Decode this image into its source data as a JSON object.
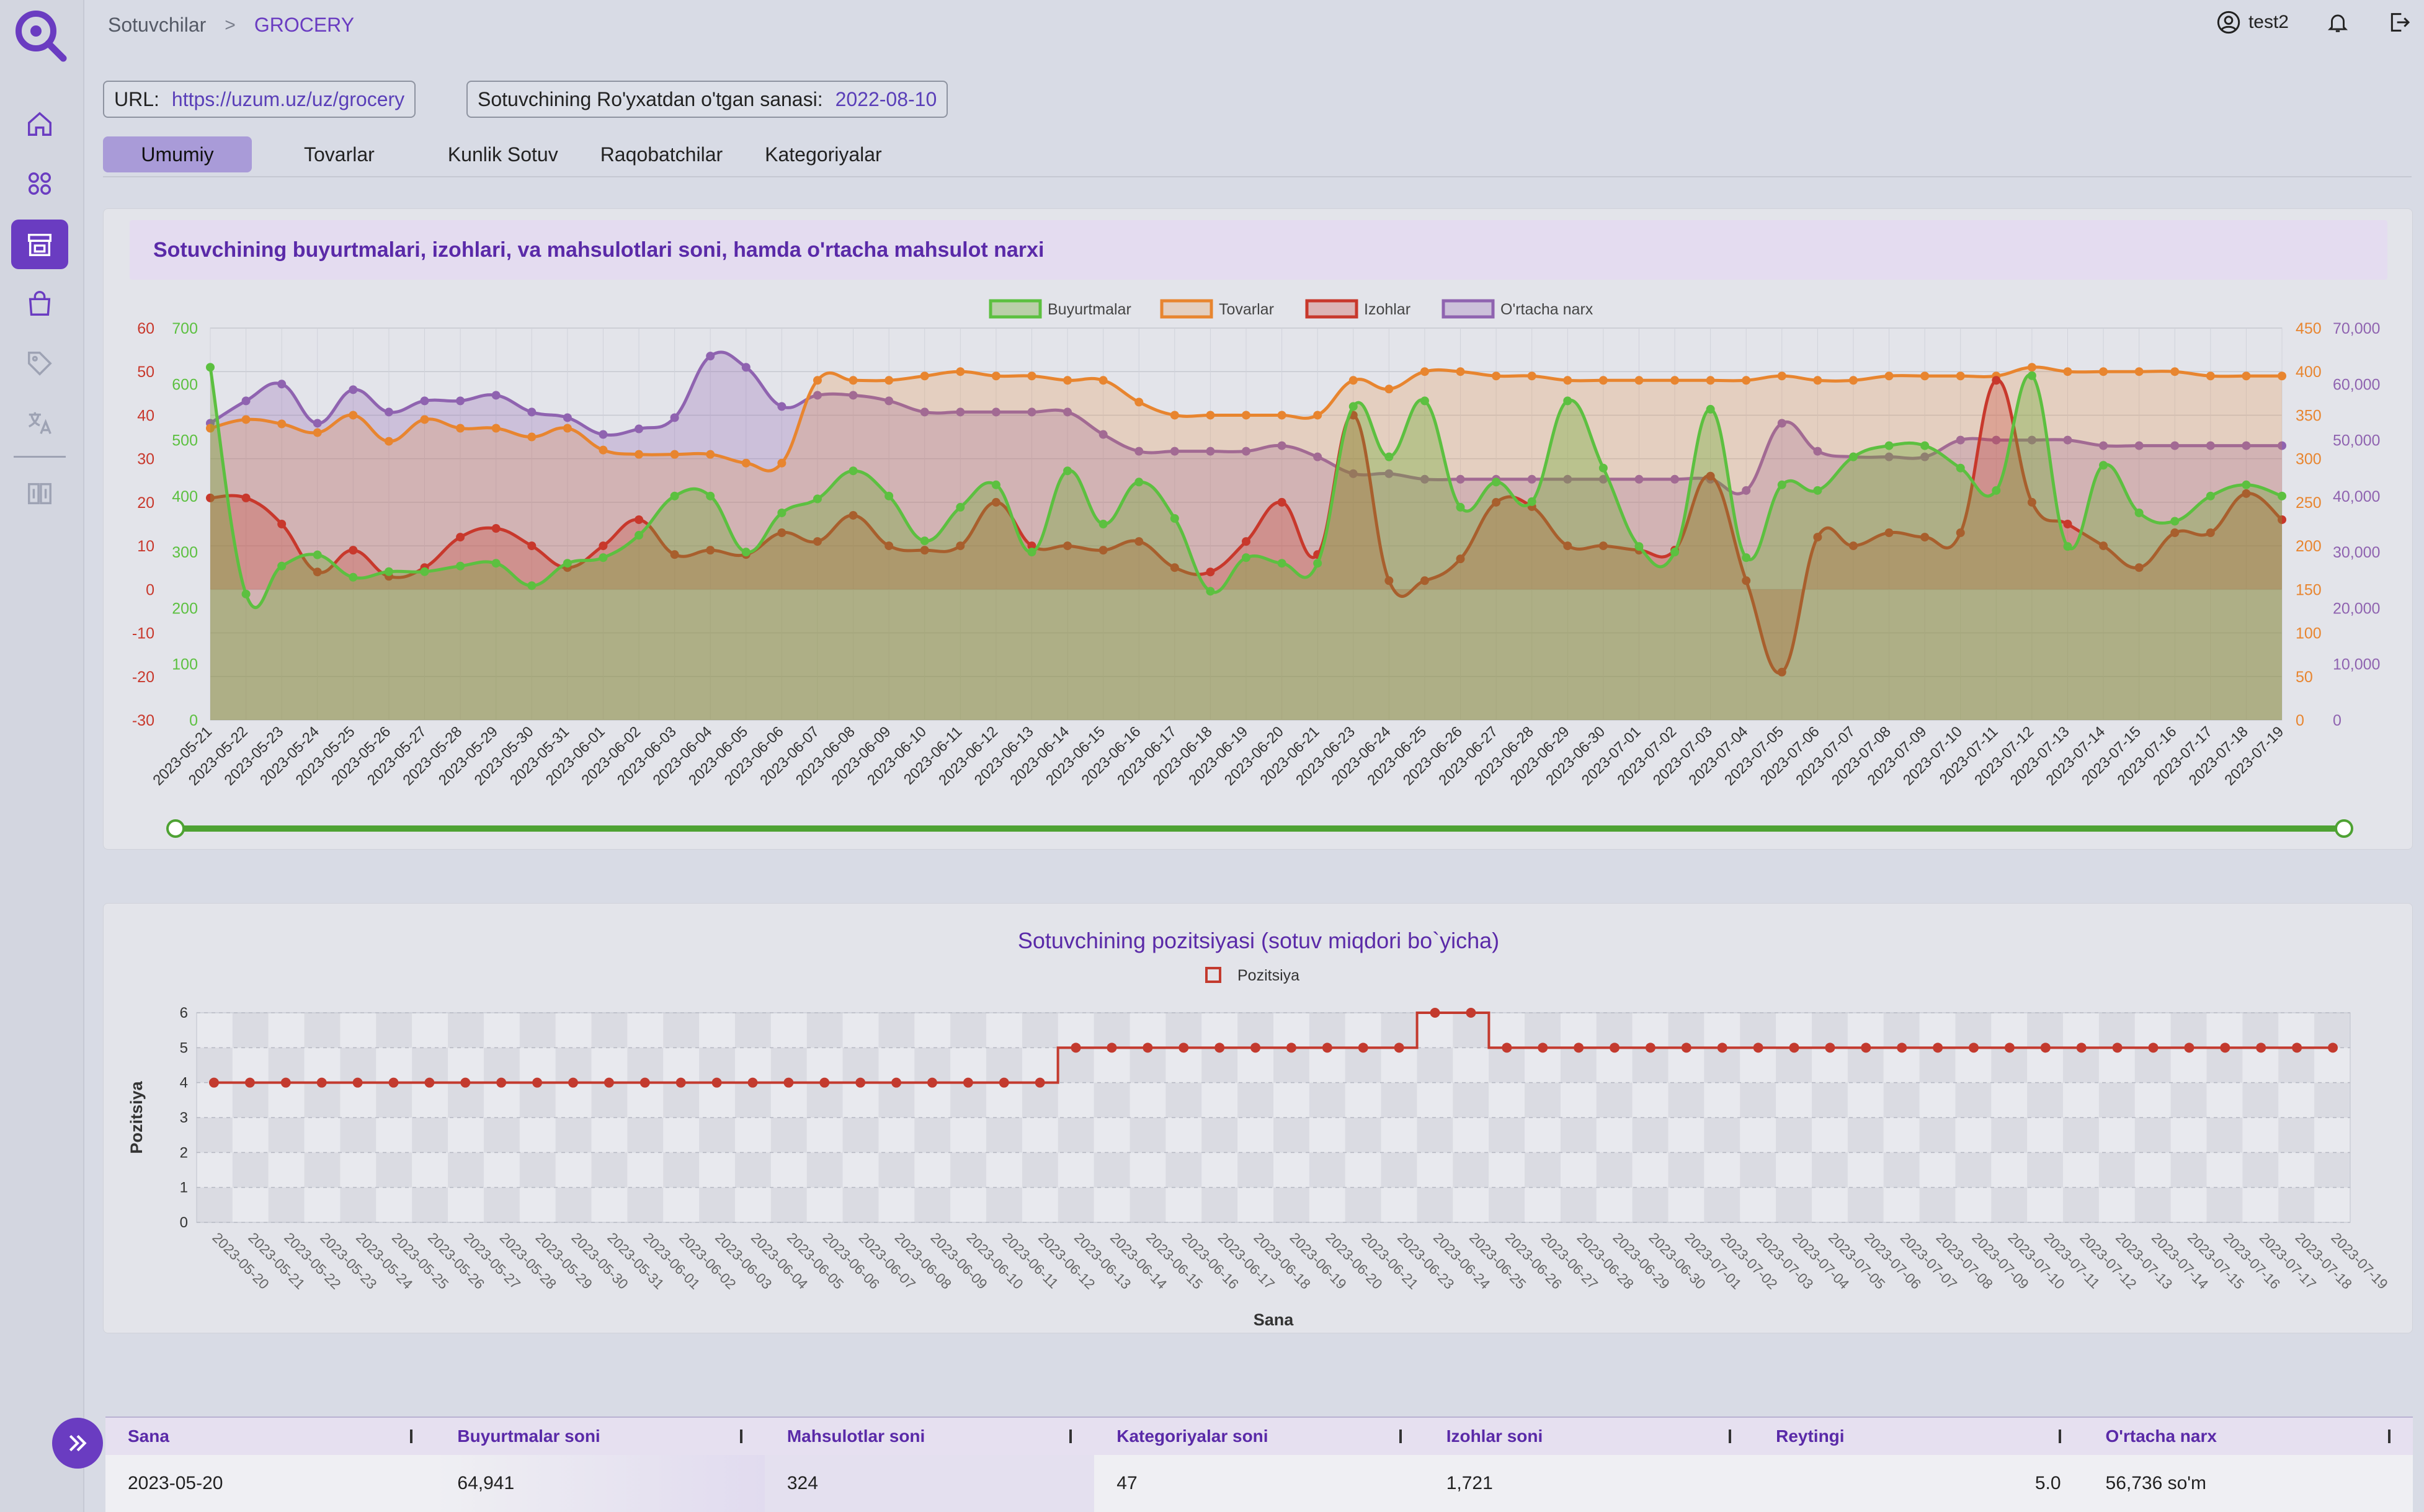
{
  "header": {
    "breadcrumb_root": "Sotuvchilar",
    "breadcrumb_current": "GROCERY",
    "username": "test2"
  },
  "info": {
    "url_label": "URL:",
    "url_value": "https://uzum.uz/uz/grocery",
    "reg_label": "Sotuvchining Ro'yxatdan o'tgan sanasi:",
    "reg_value": "2022-08-10"
  },
  "tabs": [
    "Umumiy",
    "Tovarlar",
    "Kunlik Sotuv",
    "Raqobatchilar",
    "Kategoriyalar"
  ],
  "sidebar_icons": [
    "home-icon",
    "grid-icon",
    "store-icon",
    "bag-icon",
    "tag-icon",
    "translate-icon",
    "compare-icon"
  ],
  "colors": {
    "accent": "#6a3cc1",
    "buyurtmalar": "#5cc040",
    "tovarlar": "#e8852f",
    "izohlar": "#c8382c",
    "ortacha": "#8f63b0",
    "pozitsiya": "#c33a2e"
  },
  "chart_data": [
    {
      "type": "line",
      "title": "Sotuvchining buyurtmalari, izohlari, va mahsulotlari soni, hamda o'rtacha mahsulot narxi",
      "legend_position": "top",
      "grid": true,
      "x": [
        "2023-05-21",
        "2023-05-22",
        "2023-05-23",
        "2023-05-24",
        "2023-05-25",
        "2023-05-26",
        "2023-05-27",
        "2023-05-28",
        "2023-05-29",
        "2023-05-30",
        "2023-05-31",
        "2023-06-01",
        "2023-06-02",
        "2023-06-03",
        "2023-06-04",
        "2023-06-05",
        "2023-06-06",
        "2023-06-07",
        "2023-06-08",
        "2023-06-09",
        "2023-06-10",
        "2023-06-11",
        "2023-06-12",
        "2023-06-13",
        "2023-06-14",
        "2023-06-15",
        "2023-06-16",
        "2023-06-17",
        "2023-06-18",
        "2023-06-19",
        "2023-06-20",
        "2023-06-21",
        "2023-06-23",
        "2023-06-24",
        "2023-06-25",
        "2023-06-26",
        "2023-06-27",
        "2023-06-28",
        "2023-06-29",
        "2023-06-30",
        "2023-07-01",
        "2023-07-02",
        "2023-07-03",
        "2023-07-04",
        "2023-07-05",
        "2023-07-06",
        "2023-07-07",
        "2023-07-08",
        "2023-07-09",
        "2023-07-10",
        "2023-07-11",
        "2023-07-12",
        "2023-07-13",
        "2023-07-14",
        "2023-07-15",
        "2023-07-16",
        "2023-07-17",
        "2023-07-18",
        "2023-07-19"
      ],
      "axes": {
        "izohlar": {
          "ticks": [
            60,
            50,
            40,
            30,
            20,
            10,
            0,
            -10,
            -20,
            -30
          ],
          "range": [
            -30,
            60
          ]
        },
        "buyurtmalar": {
          "ticks": [
            700,
            600,
            500,
            400,
            300,
            200,
            100,
            0
          ],
          "range": [
            0,
            700
          ]
        },
        "tovarlar": {
          "ticks": [
            450,
            400,
            350,
            300,
            250,
            200,
            150,
            100,
            50,
            0
          ],
          "range": [
            0,
            450
          ]
        },
        "ortacha": {
          "ticks": [
            "70,000",
            "60,000",
            "50,000",
            "40,000",
            "30,000",
            "20,000",
            "10,000",
            "0"
          ],
          "range": [
            0,
            70000
          ]
        }
      },
      "series": [
        {
          "name": "Buyurtmalar",
          "axis": "buyurtmalar",
          "values": [
            630,
            225,
            275,
            295,
            255,
            265,
            265,
            275,
            280,
            240,
            280,
            290,
            330,
            400,
            400,
            300,
            370,
            395,
            445,
            400,
            320,
            380,
            420,
            300,
            445,
            350,
            425,
            360,
            230,
            290,
            280,
            280,
            560,
            470,
            570,
            380,
            425,
            390,
            570,
            450,
            310,
            300,
            555,
            290,
            420,
            410,
            470,
            490,
            490,
            450,
            410,
            615,
            310,
            455,
            370,
            355,
            400,
            420,
            400
          ]
        },
        {
          "name": "Tovarlar",
          "axis": "tovarlar",
          "values": [
            335,
            345,
            340,
            330,
            350,
            320,
            345,
            335,
            335,
            325,
            335,
            310,
            305,
            305,
            305,
            295,
            295,
            390,
            390,
            390,
            395,
            400,
            395,
            395,
            390,
            390,
            365,
            350,
            350,
            350,
            350,
            350,
            390,
            380,
            400,
            400,
            395,
            395,
            390,
            390,
            390,
            390,
            390,
            390,
            395,
            390,
            390,
            395,
            395,
            395,
            395,
            405,
            400,
            400,
            400,
            400,
            395,
            395,
            395
          ]
        },
        {
          "name": "Izohlar",
          "axis": "izohlar",
          "values": [
            21,
            21,
            15,
            4,
            9,
            3,
            5,
            12,
            14,
            10,
            5,
            10,
            16,
            8,
            9,
            8,
            13,
            11,
            17,
            10,
            9,
            10,
            20,
            10,
            10,
            9,
            11,
            5,
            4,
            11,
            20,
            8,
            40,
            2,
            2,
            7,
            20,
            19,
            10,
            10,
            9,
            9,
            26,
            2,
            -19,
            12,
            10,
            13,
            12,
            13,
            48,
            20,
            15,
            10,
            5,
            13,
            13,
            22,
            16
          ]
        },
        {
          "name": "O'rtacha narx",
          "axis": "ortacha",
          "values": [
            53000,
            57000,
            60000,
            53000,
            59000,
            55000,
            57000,
            57000,
            58000,
            55000,
            54000,
            51000,
            52000,
            54000,
            65000,
            63000,
            56000,
            58000,
            58000,
            57000,
            55000,
            55000,
            55000,
            55000,
            55000,
            51000,
            48000,
            48000,
            48000,
            48000,
            49000,
            47000,
            44000,
            44000,
            43000,
            43000,
            43000,
            43000,
            43000,
            43000,
            43000,
            43000,
            43000,
            41000,
            53000,
            48000,
            47000,
            47000,
            47000,
            50000,
            50000,
            50000,
            50000,
            49000,
            49000,
            49000,
            49000,
            49000,
            49000
          ]
        }
      ]
    },
    {
      "type": "line",
      "title": "Sotuvchining pozitsiyasi (sotuv miqdori bo`yicha)",
      "xlabel": "Sana",
      "ylabel": "Pozitsiya",
      "legend_position": "top",
      "grid": true,
      "ylim": [
        0,
        6
      ],
      "yticks": [
        0,
        1,
        2,
        3,
        4,
        5,
        6
      ],
      "x": [
        "2023-05-20",
        "2023-05-21",
        "2023-05-22",
        "2023-05-23",
        "2023-05-24",
        "2023-05-25",
        "2023-05-26",
        "2023-05-27",
        "2023-05-28",
        "2023-05-29",
        "2023-05-30",
        "2023-05-31",
        "2023-06-01",
        "2023-06-02",
        "2023-06-03",
        "2023-06-04",
        "2023-06-05",
        "2023-06-06",
        "2023-06-07",
        "2023-06-08",
        "2023-06-09",
        "2023-06-10",
        "2023-06-11",
        "2023-06-12",
        "2023-06-13",
        "2023-06-14",
        "2023-06-15",
        "2023-06-16",
        "2023-06-17",
        "2023-06-18",
        "2023-06-19",
        "2023-06-20",
        "2023-06-21",
        "2023-06-23",
        "2023-06-24",
        "2023-06-25",
        "2023-06-26",
        "2023-06-27",
        "2023-06-28",
        "2023-06-29",
        "2023-06-30",
        "2023-07-01",
        "2023-07-02",
        "2023-07-03",
        "2023-07-04",
        "2023-07-05",
        "2023-07-06",
        "2023-07-07",
        "2023-07-08",
        "2023-07-09",
        "2023-07-10",
        "2023-07-11",
        "2023-07-12",
        "2023-07-13",
        "2023-07-14",
        "2023-07-15",
        "2023-07-16",
        "2023-07-17",
        "2023-07-18",
        "2023-07-19"
      ],
      "series": [
        {
          "name": "Pozitsiya",
          "values": [
            4,
            4,
            4,
            4,
            4,
            4,
            4,
            4,
            4,
            4,
            4,
            4,
            4,
            4,
            4,
            4,
            4,
            4,
            4,
            4,
            4,
            4,
            4,
            4,
            5,
            5,
            5,
            5,
            5,
            5,
            5,
            5,
            5,
            5,
            6,
            6,
            5,
            5,
            5,
            5,
            5,
            5,
            5,
            5,
            5,
            5,
            5,
            5,
            5,
            5,
            5,
            5,
            5,
            5,
            5,
            5,
            5,
            5,
            5,
            5
          ]
        }
      ]
    }
  ],
  "table": {
    "headers": [
      "Sana",
      "Buyurtmalar soni",
      "Mahsulotlar soni",
      "Kategoriyalar soni",
      "Izohlar soni",
      "Reytingi",
      "O'rtacha narx"
    ],
    "rows": [
      [
        "2023-05-20",
        "64,941",
        "324",
        "47",
        "1,721",
        "5.0",
        "56,736 so'm"
      ]
    ]
  }
}
